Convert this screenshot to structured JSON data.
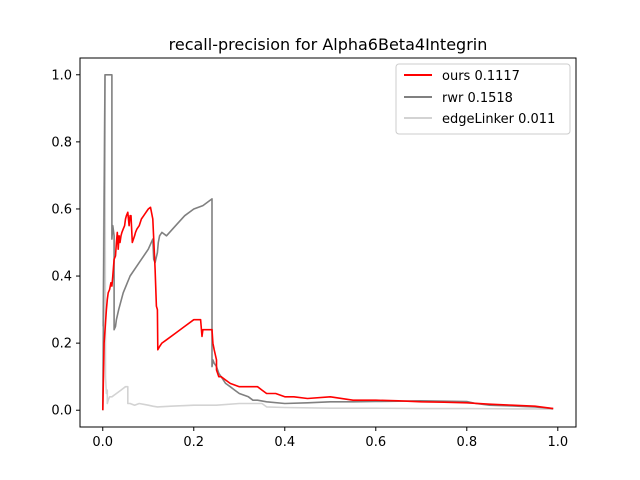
{
  "chart_data": {
    "type": "line",
    "title": "recall-precision for Alpha6Beta4Integrin",
    "xlabel": "",
    "ylabel": "",
    "xlim": [
      -0.05,
      1.04
    ],
    "ylim": [
      -0.05,
      1.05
    ],
    "xticks": [
      0.0,
      0.2,
      0.4,
      0.6,
      0.8,
      1.0
    ],
    "xtick_labels": [
      "0.0",
      "0.2",
      "0.4",
      "0.6",
      "0.8",
      "1.0"
    ],
    "yticks": [
      0.0,
      0.2,
      0.4,
      0.6,
      0.8,
      1.0
    ],
    "ytick_labels": [
      "0.0",
      "0.2",
      "0.4",
      "0.6",
      "0.8",
      "1.0"
    ],
    "grid": false,
    "legend_position": "upper right",
    "series": [
      {
        "name": "ours 0.1117",
        "color": "#ff0000",
        "x": [
          0.0,
          0.003,
          0.006,
          0.008,
          0.01,
          0.012,
          0.015,
          0.018,
          0.02,
          0.022,
          0.025,
          0.028,
          0.03,
          0.032,
          0.034,
          0.036,
          0.038,
          0.04,
          0.042,
          0.045,
          0.048,
          0.05,
          0.052,
          0.055,
          0.058,
          0.06,
          0.062,
          0.065,
          0.07,
          0.072,
          0.075,
          0.08,
          0.085,
          0.09,
          0.095,
          0.1,
          0.105,
          0.11,
          0.115,
          0.118,
          0.12,
          0.121,
          0.125,
          0.13,
          0.14,
          0.16,
          0.18,
          0.2,
          0.215,
          0.218,
          0.22,
          0.23,
          0.24,
          0.242,
          0.245,
          0.25,
          0.25,
          0.255,
          0.26,
          0.27,
          0.28,
          0.3,
          0.32,
          0.34,
          0.35,
          0.36,
          0.36,
          0.38,
          0.4,
          0.42,
          0.45,
          0.5,
          0.55,
          0.6,
          0.65,
          0.7,
          0.75,
          0.8,
          0.85,
          0.9,
          0.95,
          0.99
        ],
        "y": [
          0.0,
          0.2,
          0.26,
          0.3,
          0.33,
          0.35,
          0.36,
          0.38,
          0.37,
          0.4,
          0.45,
          0.46,
          0.5,
          0.53,
          0.48,
          0.52,
          0.5,
          0.52,
          0.53,
          0.54,
          0.55,
          0.57,
          0.58,
          0.59,
          0.55,
          0.58,
          0.58,
          0.5,
          0.52,
          0.53,
          0.54,
          0.55,
          0.57,
          0.58,
          0.59,
          0.6,
          0.605,
          0.57,
          0.42,
          0.31,
          0.3,
          0.18,
          0.19,
          0.2,
          0.21,
          0.23,
          0.25,
          0.27,
          0.27,
          0.22,
          0.24,
          0.24,
          0.24,
          0.2,
          0.18,
          0.15,
          0.12,
          0.1,
          0.1,
          0.09,
          0.08,
          0.07,
          0.07,
          0.07,
          0.06,
          0.05,
          0.05,
          0.05,
          0.04,
          0.04,
          0.035,
          0.04,
          0.03,
          0.03,
          0.028,
          0.025,
          0.024,
          0.022,
          0.018,
          0.015,
          0.012,
          0.005
        ]
      },
      {
        "name": "rwr 0.1518",
        "color": "#808080",
        "x": [
          0.0,
          0.005,
          0.005,
          0.02,
          0.02,
          0.022,
          0.025,
          0.025,
          0.028,
          0.03,
          0.035,
          0.045,
          0.06,
          0.08,
          0.1,
          0.11,
          0.112,
          0.115,
          0.12,
          0.122,
          0.125,
          0.13,
          0.14,
          0.16,
          0.18,
          0.2,
          0.22,
          0.24,
          0.24,
          0.242,
          0.245,
          0.25,
          0.255,
          0.26,
          0.27,
          0.28,
          0.29,
          0.3,
          0.32,
          0.33,
          0.34,
          0.36,
          0.4,
          0.45,
          0.5,
          0.55,
          0.6,
          0.65,
          0.7,
          0.75,
          0.8,
          0.82,
          0.85,
          0.9,
          0.95,
          0.99
        ],
        "y": [
          0.0,
          1.0,
          1.0,
          1.0,
          0.51,
          0.55,
          0.52,
          0.24,
          0.25,
          0.27,
          0.3,
          0.35,
          0.4,
          0.44,
          0.48,
          0.51,
          0.45,
          0.44,
          0.47,
          0.5,
          0.52,
          0.53,
          0.52,
          0.55,
          0.58,
          0.6,
          0.61,
          0.63,
          0.13,
          0.15,
          0.14,
          0.13,
          0.11,
          0.1,
          0.08,
          0.07,
          0.06,
          0.05,
          0.04,
          0.03,
          0.03,
          0.025,
          0.02,
          0.022,
          0.025,
          0.025,
          0.026,
          0.027,
          0.028,
          0.027,
          0.026,
          0.02,
          0.015,
          0.013,
          0.01,
          0.005
        ]
      },
      {
        "name": "edgeLinker 0.011",
        "color": "#d3d3d3",
        "x": [
          0.0,
          0.005,
          0.005,
          0.006,
          0.008,
          0.01,
          0.01,
          0.012,
          0.015,
          0.02,
          0.03,
          0.04,
          0.05,
          0.055,
          0.055,
          0.06,
          0.07,
          0.08,
          0.1,
          0.11,
          0.12,
          0.15,
          0.2,
          0.25,
          0.3,
          0.35,
          0.36,
          0.4,
          0.5,
          0.6,
          0.7,
          0.8,
          0.9,
          0.95,
          0.99
        ],
        "y": [
          0.25,
          1.0,
          1.0,
          0.1,
          0.05,
          0.06,
          0.02,
          0.03,
          0.04,
          0.04,
          0.05,
          0.06,
          0.07,
          0.07,
          0.02,
          0.02,
          0.015,
          0.02,
          0.015,
          0.012,
          0.01,
          0.012,
          0.015,
          0.015,
          0.02,
          0.02,
          0.01,
          0.008,
          0.006,
          0.006,
          0.005,
          0.005,
          0.004,
          0.004,
          0.003
        ]
      }
    ]
  }
}
